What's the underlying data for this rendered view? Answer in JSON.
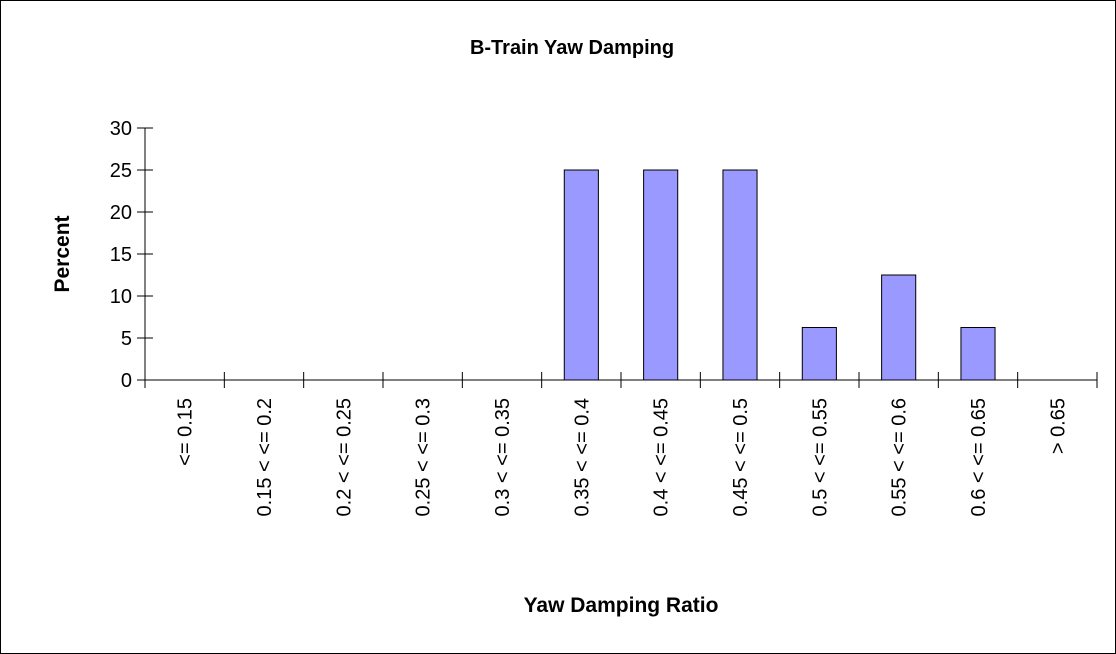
{
  "chart_data": {
    "type": "bar",
    "title": "B-Train Yaw Damping",
    "x_label": "Yaw Damping Ratio",
    "y_label": "Percent",
    "categories": [
      "<= 0.15",
      "0.15 < <= 0.2",
      "0.2 < <= 0.25",
      "0.25 < <= 0.3",
      "0.3 < <= 0.35",
      "0.35 < <= 0.4",
      "0.4 < <= 0.45",
      "0.45 < <= 0.5",
      "0.5 < <= 0.55",
      "0.55 < <= 0.6",
      "0.6 < <= 0.65",
      "> 0.65"
    ],
    "values": [
      0,
      0,
      0,
      0,
      0,
      25,
      25,
      25,
      6.25,
      12.5,
      6.25,
      0
    ],
    "color": "#9999ff",
    "ylim": [
      0,
      30
    ],
    "yticks": [
      0,
      5,
      10,
      15,
      20,
      25,
      30
    ],
    "grid": false
  }
}
